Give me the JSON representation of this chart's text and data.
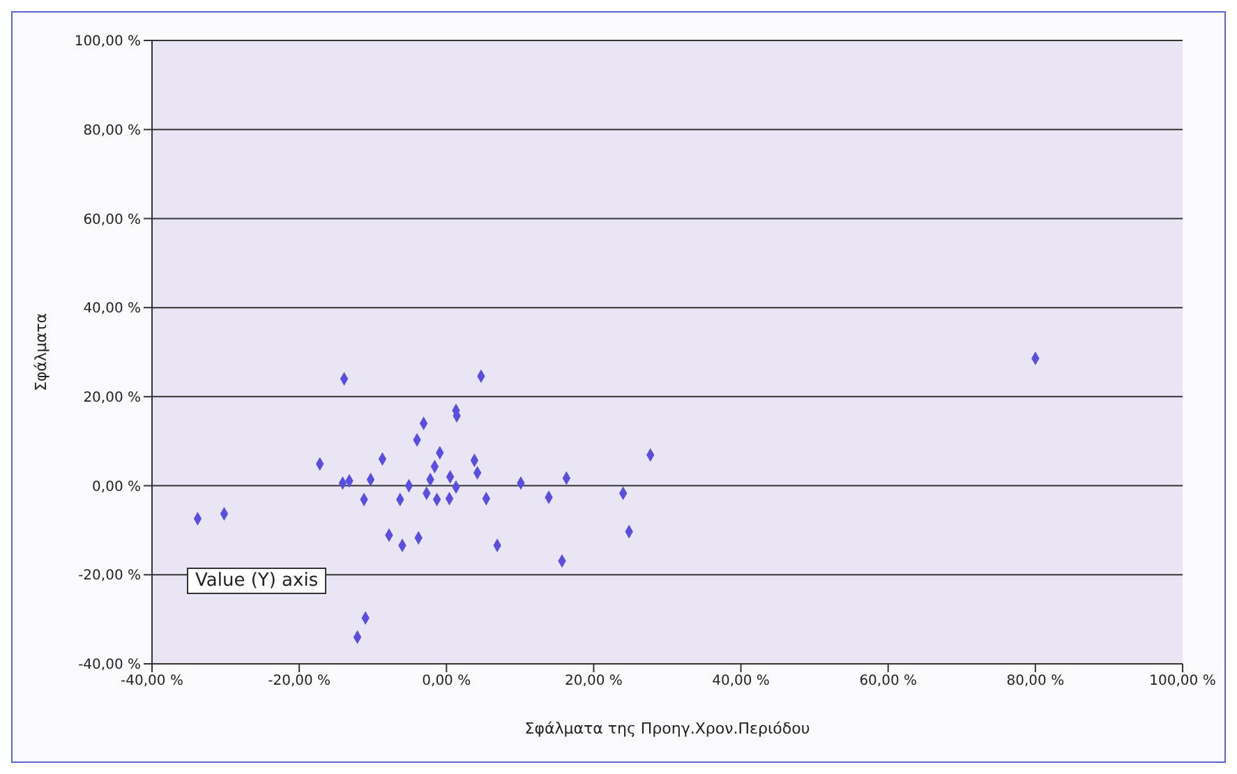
{
  "chart_data": {
    "type": "scatter",
    "xlabel": "Σφάλματα της Προηγ.Χρον.Περιόδου",
    "ylabel": "Σφάλματα",
    "marker": "diamond",
    "grid": "y",
    "color": "#5a4ee0",
    "x": [
      -33.8,
      -30.2,
      -13.9,
      -17.2,
      -14.1,
      -13.2,
      -11.2,
      -10.3,
      -8.7,
      -7.8,
      -6,
      -6.3,
      -5.1,
      -4,
      -3.1,
      -3.8,
      -2.7,
      -2.2,
      -1.6,
      -0.9,
      -1.3,
      0.5,
      0.4,
      1.3,
      1.3,
      1.4,
      3.8,
      4.2,
      5.4,
      6.9,
      10.1,
      13.9,
      -11,
      -12.1,
      4.7,
      16.3,
      24,
      24.8,
      15.7,
      27.7,
      80
    ],
    "values": [
      -7.4,
      -6.3,
      24,
      4.9,
      0.6,
      1.1,
      -3.1,
      1.4,
      6,
      -11.1,
      -13.4,
      -3.1,
      0,
      10.3,
      14,
      -11.7,
      -1.7,
      1.4,
      4.3,
      7.4,
      -3.1,
      2,
      -2.9,
      -0.3,
      16.9,
      15.7,
      5.7,
      2.9,
      -2.9,
      -13.4,
      0.6,
      -2.6,
      -29.7,
      -34,
      24.6,
      1.7,
      -1.7,
      -10.3,
      -16.9,
      6.9,
      28.6
    ],
    "xlim": [
      -40,
      100
    ],
    "xticks": [
      {
        "value": -40,
        "label": "-40,00 %"
      },
      {
        "value": -20,
        "label": "-20,00 %"
      },
      {
        "value": 0,
        "label": "0,00 %"
      },
      {
        "value": 20,
        "label": "20,00 %"
      },
      {
        "value": 40,
        "label": "40,00 %"
      },
      {
        "value": 60,
        "label": "60,00 %"
      },
      {
        "value": 80,
        "label": "80,00 %"
      },
      {
        "value": 100,
        "label": "100,00 %"
      }
    ],
    "ylim": [
      -40,
      100
    ],
    "yticks": [
      {
        "value": -40,
        "label": "-40,00 %"
      },
      {
        "value": -20,
        "label": "-20,00 %"
      },
      {
        "value": 0,
        "label": "0,00 %"
      },
      {
        "value": 20,
        "label": "20,00 %"
      },
      {
        "value": 40,
        "label": "40,00 %"
      },
      {
        "value": 60,
        "label": "60,00 %"
      },
      {
        "value": 80,
        "label": "80,00 %"
      },
      {
        "value": 100,
        "label": "100,00 %"
      }
    ],
    "annotations": [
      "Value (Y) axis"
    ]
  }
}
